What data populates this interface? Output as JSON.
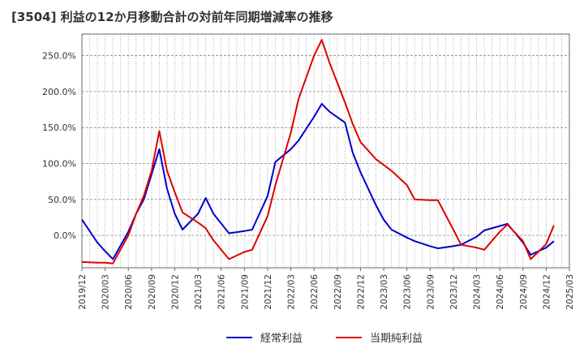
{
  "chart_data": {
    "type": "line",
    "title": "[3504]  利益の12か月移動合計の対前年同期増減率の推移",
    "x_tick_labels": [
      "2019/12",
      "2020/03",
      "2020/06",
      "2020/09",
      "2020/12",
      "2021/03",
      "2021/06",
      "2021/09",
      "2021/12",
      "2022/03",
      "2022/06",
      "2022/09",
      "2022/12",
      "2023/03",
      "2023/06",
      "2023/09",
      "2023/12",
      "2024/03",
      "2024/06",
      "2024/09",
      "2024/12",
      "2025/03"
    ],
    "y_tick_labels": [
      "250.0%",
      "200.0%",
      "150.0%",
      "100.0%",
      "50.0%",
      "0.0%"
    ],
    "y_ticks": [
      250,
      200,
      150,
      100,
      50,
      0
    ],
    "ylim": [
      -45,
      280
    ],
    "xlim": [
      0,
      63
    ],
    "grid": true,
    "legend_position": "bottom",
    "series": [
      {
        "name": "経常利益",
        "color": "#0000cc",
        "points": [
          [
            0,
            22
          ],
          [
            2,
            -10
          ],
          [
            3,
            -22
          ],
          [
            4,
            -33
          ],
          [
            6,
            5
          ],
          [
            7,
            30
          ],
          [
            8,
            50
          ],
          [
            9,
            85
          ],
          [
            10,
            120
          ],
          [
            11,
            65
          ],
          [
            12,
            30
          ],
          [
            13,
            8
          ],
          [
            15,
            30
          ],
          [
            16,
            52
          ],
          [
            17,
            30
          ],
          [
            19,
            3
          ],
          [
            21,
            6
          ],
          [
            22,
            8
          ],
          [
            24,
            55
          ],
          [
            25,
            102
          ],
          [
            27,
            120
          ],
          [
            28,
            132
          ],
          [
            30,
            165
          ],
          [
            31,
            183
          ],
          [
            32,
            172
          ],
          [
            34,
            157
          ],
          [
            35,
            115
          ],
          [
            36,
            88
          ],
          [
            38,
            42
          ],
          [
            39,
            22
          ],
          [
            40,
            8
          ],
          [
            42,
            -3
          ],
          [
            43,
            -8
          ],
          [
            45,
            -15
          ],
          [
            46,
            -18
          ],
          [
            48,
            -15
          ],
          [
            49,
            -13
          ],
          [
            51,
            -2
          ],
          [
            52,
            7
          ],
          [
            54,
            13
          ],
          [
            55,
            16
          ],
          [
            57,
            -10
          ],
          [
            58,
            -27
          ],
          [
            60,
            -17
          ],
          [
            61,
            -8
          ]
        ]
      },
      {
        "name": "当期純利益",
        "color": "#dd0000",
        "points": [
          [
            0,
            -37
          ],
          [
            2,
            -38
          ],
          [
            3,
            -38
          ],
          [
            4,
            -39
          ],
          [
            6,
            0
          ],
          [
            7,
            30
          ],
          [
            8,
            55
          ],
          [
            9,
            90
          ],
          [
            10,
            145
          ],
          [
            11,
            90
          ],
          [
            12,
            60
          ],
          [
            13,
            32
          ],
          [
            15,
            18
          ],
          [
            16,
            10
          ],
          [
            17,
            -7
          ],
          [
            18,
            -20
          ],
          [
            19,
            -33
          ],
          [
            21,
            -23
          ],
          [
            22,
            -20
          ],
          [
            24,
            27
          ],
          [
            25,
            70
          ],
          [
            27,
            143
          ],
          [
            28,
            190
          ],
          [
            30,
            250
          ],
          [
            31,
            272
          ],
          [
            32,
            240
          ],
          [
            34,
            185
          ],
          [
            35,
            155
          ],
          [
            36,
            130
          ],
          [
            38,
            106
          ],
          [
            39,
            98
          ],
          [
            40,
            90
          ],
          [
            42,
            70
          ],
          [
            43,
            50
          ],
          [
            45,
            49
          ],
          [
            46,
            49
          ],
          [
            48,
            8
          ],
          [
            49,
            -13
          ],
          [
            51,
            -17
          ],
          [
            52,
            -20
          ],
          [
            54,
            5
          ],
          [
            55,
            15
          ],
          [
            57,
            -8
          ],
          [
            58,
            -33
          ],
          [
            60,
            -12
          ],
          [
            61,
            14
          ]
        ]
      }
    ]
  }
}
